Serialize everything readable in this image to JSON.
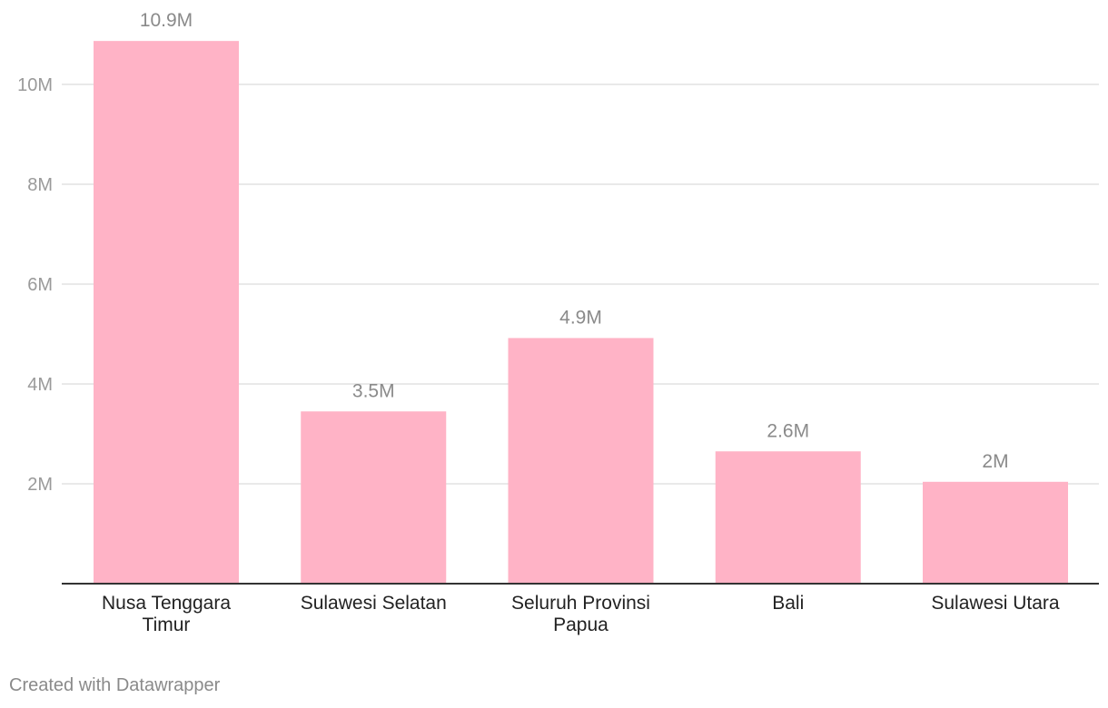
{
  "chart_data": {
    "type": "bar",
    "categories": [
      [
        "Nusa Tenggara",
        "Timur"
      ],
      [
        "Sulawesi Selatan"
      ],
      [
        "Seluruh Provinsi",
        "Papua"
      ],
      [
        "Bali"
      ],
      [
        "Sulawesi Utara"
      ]
    ],
    "values": [
      10.87,
      3.45,
      4.92,
      2.65,
      2.04
    ],
    "value_labels": [
      "10.9M",
      "3.5M",
      "4.9M",
      "2.6M",
      "2M"
    ],
    "y_ticks": [
      2,
      4,
      6,
      8,
      10
    ],
    "y_tick_labels": [
      "2M",
      "4M",
      "6M",
      "8M",
      "10M"
    ],
    "ylim": [
      0,
      11.3
    ],
    "grid": true,
    "bar_color": "#ffb3c6",
    "grid_color": "#e2e2e2",
    "axis_color": "#333333",
    "label_color": "#8a8a8a",
    "category_label_color": "#222222"
  },
  "footer": {
    "credit": "Created with Datawrapper"
  }
}
